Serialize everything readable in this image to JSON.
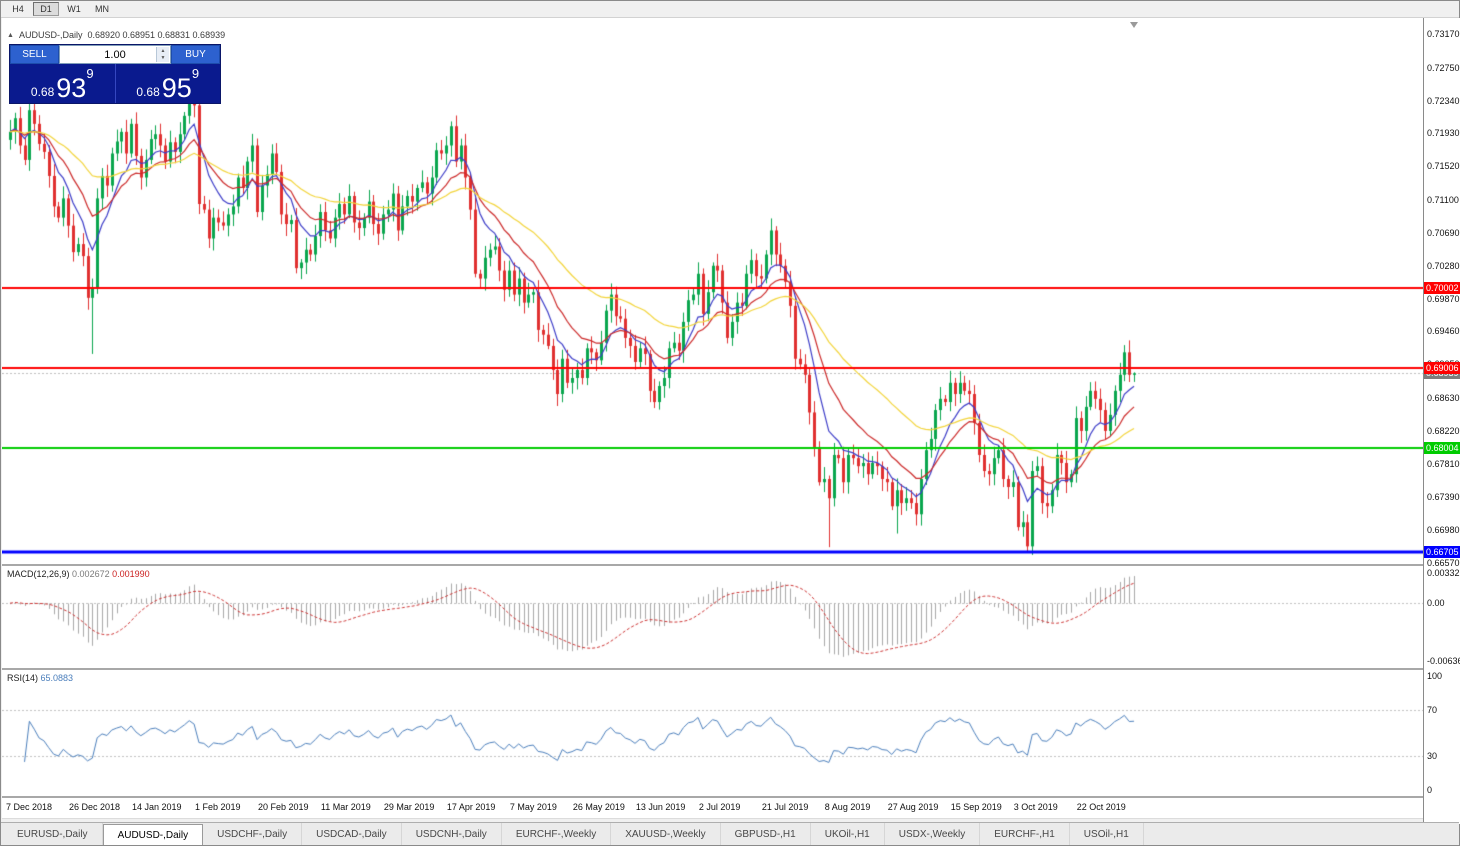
{
  "toolbar": {
    "timeframes": [
      {
        "label": "H4",
        "active": false
      },
      {
        "label": "D1",
        "active": true
      },
      {
        "label": "W1",
        "active": false
      },
      {
        "label": "MN",
        "active": false
      }
    ]
  },
  "chart": {
    "collapse_arrow": "▲",
    "symbol_title": "AUDUSD-,Daily",
    "ohlc_text": "0.68920 0.68951 0.68831 0.68939"
  },
  "trade_panel": {
    "sell_label": "SELL",
    "buy_label": "BUY",
    "volume": "1.00",
    "sell_price": {
      "prefix": "0.68",
      "pips": "93",
      "fraction": "9"
    },
    "buy_price": {
      "prefix": "0.68",
      "pips": "95",
      "fraction": "9"
    }
  },
  "chart_data": {
    "type": "candlestick",
    "symbol": "AUDUSD-",
    "period": "Daily",
    "first_open": 0.7185,
    "closes": [
      0.7195,
      0.7212,
      0.7178,
      0.716,
      0.7222,
      0.7205,
      0.718,
      0.717,
      0.714,
      0.7102,
      0.7088,
      0.7112,
      0.7078,
      0.7045,
      0.7055,
      0.704,
      0.6988,
      0.7,
      0.7112,
      0.714,
      0.7128,
      0.7168,
      0.7183,
      0.7195,
      0.7168,
      0.7205,
      0.7165,
      0.7138,
      0.716,
      0.7186,
      0.7192,
      0.7178,
      0.7158,
      0.7182,
      0.717,
      0.7192,
      0.7215,
      0.7245,
      0.7228,
      0.7105,
      0.7098,
      0.7062,
      0.7088,
      0.7082,
      0.7078,
      0.7092,
      0.7102,
      0.7138,
      0.7125,
      0.7158,
      0.7178,
      0.7095,
      0.7128,
      0.7142,
      0.7168,
      0.7145,
      0.7092,
      0.708,
      0.7085,
      0.7025,
      0.7032,
      0.7048,
      0.7042,
      0.7065,
      0.7095,
      0.7072,
      0.7062,
      0.7088,
      0.7105,
      0.7092,
      0.7115,
      0.7082,
      0.7075,
      0.7088,
      0.7108,
      0.708,
      0.7068,
      0.7092,
      0.7098,
      0.7118,
      0.7072,
      0.7102,
      0.7115,
      0.7108,
      0.7125,
      0.7132,
      0.7118,
      0.7138,
      0.7172,
      0.7168,
      0.7178,
      0.7202,
      0.7158,
      0.7178,
      0.7138,
      0.7098,
      0.7018,
      0.7012,
      0.7038,
      0.7048,
      0.7052,
      0.7022,
      0.6998,
      0.7022,
      0.6992,
      0.7012,
      0.6982,
      0.6992,
      0.6995,
      0.6948,
      0.6942,
      0.6928,
      0.6898,
      0.6868,
      0.6912,
      0.6882,
      0.6888,
      0.6898,
      0.6888,
      0.6925,
      0.692,
      0.691,
      0.6932,
      0.6972,
      0.6992,
      0.6965,
      0.6962,
      0.6938,
      0.6928,
      0.6908,
      0.6925,
      0.6918,
      0.6872,
      0.6858,
      0.6878,
      0.6888,
      0.6925,
      0.6932,
      0.6922,
      0.6958,
      0.6985,
      0.6992,
      0.7018,
      0.6968,
      0.6995,
      0.7028,
      0.7022,
      0.6982,
      0.6938,
      0.6958,
      0.6982,
      0.6978,
      0.7018,
      0.7035,
      0.7015,
      0.7012,
      0.7042,
      0.7072,
      0.7042,
      0.7028,
      0.7008,
      0.6978,
      0.6912,
      0.6905,
      0.6892,
      0.6845,
      0.6802,
      0.6758,
      0.6762,
      0.6738,
      0.6792,
      0.6788,
      0.6758,
      0.6792,
      0.6788,
      0.6778,
      0.6782,
      0.6768,
      0.6782,
      0.6778,
      0.6762,
      0.6758,
      0.6728,
      0.6748,
      0.6732,
      0.6738,
      0.6732,
      0.6718,
      0.6762,
      0.6798,
      0.6812,
      0.6848,
      0.6862,
      0.6858,
      0.6882,
      0.6868,
      0.6882,
      0.6872,
      0.6868,
      0.6832,
      0.6792,
      0.6772,
      0.6768,
      0.6788,
      0.6798,
      0.6762,
      0.6752,
      0.6758,
      0.6702,
      0.6708,
      0.6678,
      0.6772,
      0.6778,
      0.6732,
      0.6728,
      0.6748,
      0.6792,
      0.6782,
      0.6758,
      0.6768,
      0.6838,
      0.6822,
      0.6852,
      0.6872,
      0.6862,
      0.6848,
      0.6822,
      0.6842,
      0.6872,
      0.6892,
      0.692,
      0.6892,
      0.68939
    ],
    "wick_overrides": {
      "17": {
        "l": 0.6918
      },
      "91": {
        "h": 0.7208
      },
      "169": {
        "l": 0.6677
      },
      "183": {
        "l": 0.6694
      },
      "210": {
        "l": 0.6672
      },
      "230": {
        "h": 0.6929
      },
      "232": {
        "h": 0.68951,
        "l": 0.68831
      }
    },
    "colors": {
      "up": "#0aa64e",
      "down": "#e03030",
      "ma_fast": "#3c3cc8",
      "ma_mid": "#cc2a2a",
      "ma_slow": "#f2d43b",
      "macd_hist": "#a8a8a8",
      "macd_signal": "#cc3333",
      "rsi_line": "#4a7ebb",
      "grid": "#c0c0c0"
    },
    "moving_averages": [
      {
        "name": "ma-fast",
        "period": 8,
        "color_key": "ma_fast"
      },
      {
        "name": "ma-mid",
        "period": 16,
        "color_key": "ma_mid"
      },
      {
        "name": "ma-slow",
        "period": 40,
        "color_key": "ma_slow"
      }
    ],
    "hlines": [
      {
        "label": "0.70002",
        "value": 0.70002,
        "color": "#ff0000",
        "width": 2
      },
      {
        "label": "0.69006",
        "value": 0.69006,
        "color": "#ff0000",
        "width": 2
      },
      {
        "label": "0.68004",
        "value": 0.68004,
        "color": "#00cc00",
        "width": 2
      },
      {
        "label": "0.66705",
        "value": 0.66705,
        "color": "#0000ff",
        "width": 3
      }
    ],
    "current_price": {
      "label": "0.68939",
      "value": 0.68939,
      "badge_color": "#7d7d7d"
    },
    "price_axis": {
      "p_top": 0.7337,
      "p_bottom": 0.6656,
      "ticks": [
        "0.73170",
        "0.72750",
        "0.72340",
        "0.71930",
        "0.71520",
        "0.71100",
        "0.70690",
        "0.70280",
        "0.69870",
        "0.69460",
        "0.69050",
        "0.68630",
        "0.68220",
        "0.67810",
        "0.67390",
        "0.66980",
        "0.66570"
      ]
    },
    "x_labels": [
      "7 Dec 2018",
      "26 Dec 2018",
      "14 Jan 2019",
      "1 Feb 2019",
      "20 Feb 2019",
      "11 Mar 2019",
      "29 Mar 2019",
      "17 Apr 2019",
      "7 May 2019",
      "26 May 2019",
      "13 Jun 2019",
      "2 Jul 2019",
      "21 Jul 2019",
      "8 Aug 2019",
      "27 Aug 2019",
      "15 Sep 2019",
      "3 Oct 2019",
      "22 Oct 2019"
    ],
    "macd": {
      "label": "MACD(12,26,9)",
      "value_main": "0.002672",
      "value_signal": "0.001990",
      "fast": 12,
      "slow": 26,
      "signal": 9,
      "axis_max": 0.00332,
      "axis_min": -0.00636,
      "ticks": [
        {
          "label": "0.00332",
          "value": 0.00332
        },
        {
          "label": "0.00",
          "value": 0
        },
        {
          "label": "-0.00636",
          "value": -0.00636
        }
      ]
    },
    "rsi": {
      "label": "RSI(14)",
      "value": "65.0883",
      "period": 14,
      "levels": [
        70,
        30
      ],
      "ticks": [
        {
          "label": "100",
          "value": 100
        },
        {
          "label": "70",
          "value": 70
        },
        {
          "label": "30",
          "value": 30
        },
        {
          "label": "0",
          "value": 0
        }
      ]
    }
  },
  "tabs": {
    "items": [
      {
        "label": "EURUSD-,Daily",
        "active": false
      },
      {
        "label": "AUDUSD-,Daily",
        "active": true
      },
      {
        "label": "USDCHF-,Daily",
        "active": false
      },
      {
        "label": "USDCAD-,Daily",
        "active": false
      },
      {
        "label": "USDCNH-,Daily",
        "active": false
      },
      {
        "label": "EURCHF-,Weekly",
        "active": false
      },
      {
        "label": "XAUUSD-,Weekly",
        "active": false
      },
      {
        "label": "GBPUSD-,H1",
        "active": false
      },
      {
        "label": "UKOil-,H1",
        "active": false
      },
      {
        "label": "USDX-,Weekly",
        "active": false
      },
      {
        "label": "EURCHF-,H1",
        "active": false
      },
      {
        "label": "USOil-,H1",
        "active": false
      }
    ]
  }
}
